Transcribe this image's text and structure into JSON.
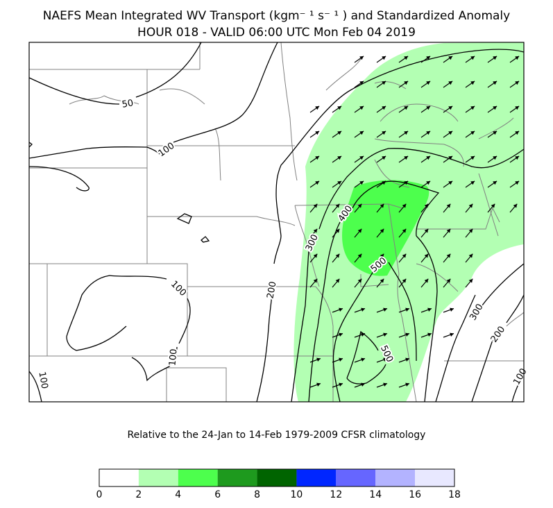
{
  "title": {
    "line1": "NAEFS Mean Integrated WV Transport (kgm⁻ ¹ s⁻ ¹ ) and Standardized Anomaly",
    "line2": "HOUR 018 - VALID 06:00 UTC Mon Feb 04 2019"
  },
  "subtitle": "Relative to the 24-Jan to 14-Feb 1979-2009 CFSR climatology",
  "contour_labels": [
    "50",
    "100",
    "100",
    "100",
    "100",
    "200",
    "300",
    "400",
    "500",
    "500",
    "300",
    "200",
    "100"
  ],
  "colorbar": {
    "ticks": [
      "0",
      "2",
      "4",
      "6",
      "8",
      "10",
      "12",
      "14",
      "16",
      "18"
    ],
    "colors": [
      "#ffffff",
      "#b3ffb3",
      "#4dff4d",
      "#1e9a1e",
      "#006400",
      "#0026ff",
      "#6666ff",
      "#b3b3ff",
      "#e8e8ff"
    ]
  },
  "colors": {
    "anomaly_2_4": "#b3ffb3",
    "anomaly_4_6": "#4dff4d",
    "borders": "#808080",
    "contours": "#000000"
  }
}
